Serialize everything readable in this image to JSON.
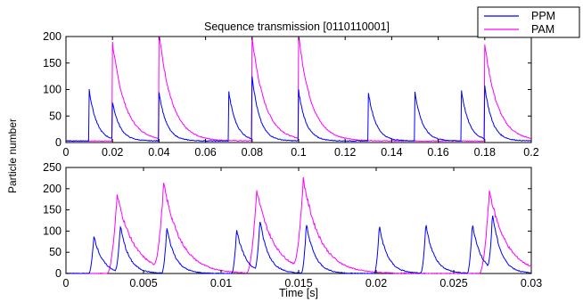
{
  "chart_data": [
    {
      "type": "line",
      "title": "Sequence transmission [0110110001]",
      "xlabel": "",
      "ylabel": "",
      "xlim": [
        0,
        0.2
      ],
      "ylim": [
        0,
        200
      ],
      "xticks": [
        "0",
        "0.02",
        "0.04",
        "0.06",
        "0.08",
        "0.1",
        "0.12",
        "0.14",
        "0.16",
        "0.18",
        "0.2"
      ],
      "yticks": [
        "0",
        "50",
        "100",
        "150",
        "200"
      ],
      "grid": false,
      "legend": "top-right",
      "series": [
        {
          "name": "PPM",
          "color": "#0000ff",
          "pulses": [
            {
              "t": 0.01,
              "peak": 97
            },
            {
              "t": 0.02,
              "peak": 70
            },
            {
              "t": 0.04,
              "peak": 93
            },
            {
              "t": 0.07,
              "peak": 92
            },
            {
              "t": 0.08,
              "peak": 120
            },
            {
              "t": 0.1,
              "peak": 95
            },
            {
              "t": 0.13,
              "peak": 92
            },
            {
              "t": 0.15,
              "peak": 93
            },
            {
              "t": 0.17,
              "peak": 95
            },
            {
              "t": 0.18,
              "peak": 100
            }
          ]
        },
        {
          "name": "PAM",
          "color": "#ff00ff",
          "pulses": [
            {
              "t": 0.02,
              "peak": 185
            },
            {
              "t": 0.04,
              "peak": 200
            },
            {
              "t": 0.08,
              "peak": 195
            },
            {
              "t": 0.1,
              "peak": 195
            },
            {
              "t": 0.18,
              "peak": 183
            }
          ]
        }
      ]
    },
    {
      "type": "line",
      "title": "",
      "xlabel": "Time [s]",
      "ylabel": "Particle number",
      "xlim": [
        0,
        0.03
      ],
      "ylim": [
        0,
        250
      ],
      "xticks": [
        "0",
        "0.005",
        "0.01",
        "0.015",
        "0.02",
        "0.025",
        "0.03"
      ],
      "yticks": [
        "0",
        "50",
        "100",
        "150",
        "200",
        "250"
      ],
      "grid": false,
      "series": [
        {
          "name": "PPM",
          "color": "#0000ff",
          "pulses": [
            {
              "t": 0.0018,
              "peak": 90
            },
            {
              "t": 0.0035,
              "peak": 110
            },
            {
              "t": 0.0065,
              "peak": 108
            },
            {
              "t": 0.011,
              "peak": 105
            },
            {
              "t": 0.0125,
              "peak": 120
            },
            {
              "t": 0.0155,
              "peak": 118
            },
            {
              "t": 0.0202,
              "peak": 112
            },
            {
              "t": 0.0232,
              "peak": 115
            },
            {
              "t": 0.0262,
              "peak": 118
            },
            {
              "t": 0.0275,
              "peak": 130
            }
          ]
        },
        {
          "name": "PAM",
          "color": "#ff00ff",
          "pulses": [
            {
              "t": 0.0033,
              "peak": 185
            },
            {
              "t": 0.0063,
              "peak": 200
            },
            {
              "t": 0.0123,
              "peak": 195
            },
            {
              "t": 0.0153,
              "peak": 210
            },
            {
              "t": 0.0273,
              "peak": 195
            }
          ]
        }
      ]
    }
  ]
}
